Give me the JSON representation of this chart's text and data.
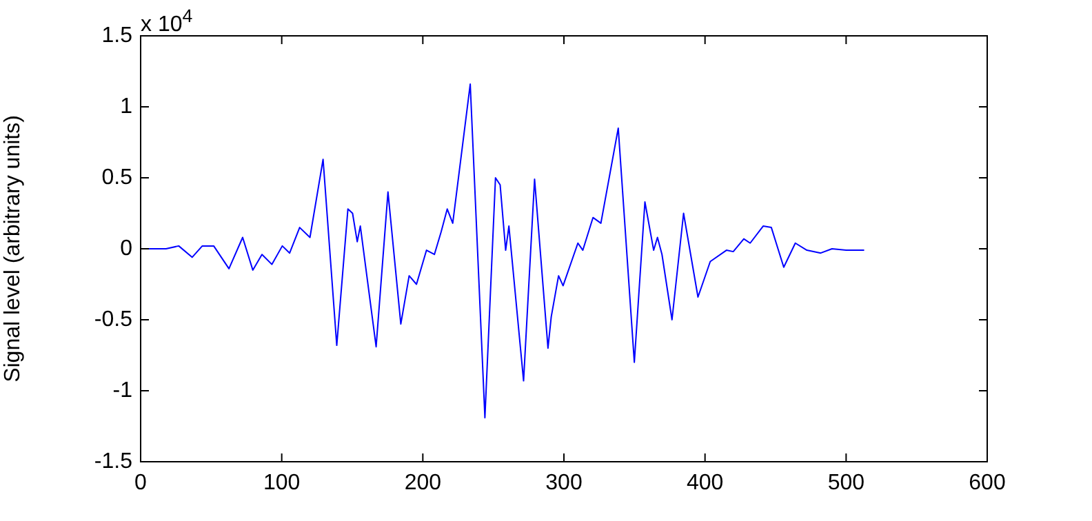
{
  "chart_data": {
    "type": "line",
    "ylabel": "Signal level (arbitrary units)",
    "annotations": [
      "x 10$^{4}$"
    ],
    "series": [
      {
        "color": "#0000ff",
        "x": [
          0,
          18,
          27,
          36.5,
          43.7,
          51.8,
          62.6,
          72.3,
          79.5,
          86,
          93,
          100.4,
          105.6,
          112.7,
          120,
          129.3,
          139,
          146.9,
          150.2,
          153.5,
          155.7,
          166.9,
          175.3,
          184.4,
          190.3,
          195.5,
          202.6,
          208.2,
          213,
          217.3,
          221.2,
          233.6,
          244,
          251.5,
          254.8,
          258.7,
          261,
          271.4,
          279.2,
          288.7,
          291,
          296.2,
          299.4,
          309.9,
          313.4,
          320.6,
          326.2,
          338.5,
          349.9,
          357.4,
          363.6,
          366.3,
          369.5,
          376.6,
          384.8,
          395,
          403.7,
          415.2,
          420,
          427.5,
          432,
          441.2,
          447,
          455.8,
          464,
          472.2,
          482,
          490,
          500,
          512.8
        ],
        "values": [
          0,
          0,
          0.02,
          -0.06,
          0.02,
          0.02,
          -0.14,
          0.08,
          -0.15,
          -0.04,
          -0.11,
          0.02,
          -0.03,
          0.15,
          0.08,
          0.63,
          -0.68,
          0.28,
          0.25,
          0.05,
          0.16,
          -0.69,
          0.4,
          -0.53,
          -0.19,
          -0.25,
          -0.01,
          -0.04,
          0.12,
          0.28,
          0.18,
          1.16,
          -1.19,
          0.5,
          0.45,
          -0.01,
          0.16,
          -0.93,
          0.49,
          -0.7,
          -0.48,
          -0.19,
          -0.26,
          0.04,
          -0.01,
          0.22,
          0.18,
          0.85,
          -0.8,
          0.33,
          -0.01,
          0.08,
          -0.04,
          -0.5,
          0.25,
          -0.34,
          -0.09,
          -0.01,
          -0.02,
          0.07,
          0.04,
          0.16,
          0.15,
          -0.13,
          0.04,
          -0.01,
          -0.03,
          0,
          -0.01,
          -0.01
        ]
      }
    ],
    "xlim": [
      0,
      600
    ],
    "xticks": [
      0,
      100,
      200,
      300,
      400,
      500,
      600
    ],
    "ylim": [
      -1.5,
      1.5
    ],
    "yticks": [
      -1.5,
      -1,
      -0.5,
      0,
      0.5,
      1,
      1.5
    ],
    "grid": false,
    "legend": false,
    "marker": "none",
    "line_style": "solid"
  }
}
